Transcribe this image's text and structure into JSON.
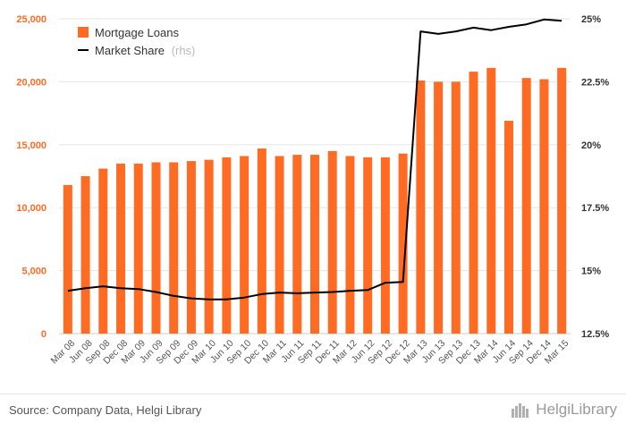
{
  "chart_data": {
    "type": "bar",
    "categories": [
      "Mar 08",
      "Jun 08",
      "Sep 08",
      "Dec 08",
      "Mar 09",
      "Jun 09",
      "Sep 09",
      "Dec 09",
      "Mar 10",
      "Jun 10",
      "Sep 10",
      "Dec 10",
      "Mar 11",
      "Jun 11",
      "Sep 11",
      "Dec 11",
      "Mar 12",
      "Jun 12",
      "Sep 12",
      "Dec 12",
      "Mar 13",
      "Jun 13",
      "Sep 13",
      "Dec 13",
      "Mar 14",
      "Jun 14",
      "Sep 14",
      "Dec 14",
      "Mar 15"
    ],
    "series": [
      {
        "name": "Mortgage Loans",
        "type": "bar",
        "axis": "left",
        "color": "#ff6b23",
        "values": [
          11800,
          12500,
          13100,
          13500,
          13500,
          13600,
          13600,
          13700,
          13800,
          14000,
          14100,
          14700,
          14100,
          14200,
          14200,
          14500,
          14100,
          14000,
          14000,
          14300,
          20100,
          20000,
          20000,
          20800,
          21100,
          16900,
          20300,
          20200,
          21100
        ]
      },
      {
        "name": "Market Share",
        "name_suffix": "(rhs)",
        "type": "line",
        "axis": "right",
        "color": "#000000",
        "values": [
          14.2,
          14.3,
          14.38,
          14.3,
          14.27,
          14.15,
          14.0,
          13.9,
          13.86,
          13.86,
          13.93,
          14.07,
          14.13,
          14.1,
          14.13,
          14.15,
          14.2,
          14.23,
          14.52,
          14.55,
          24.5,
          24.4,
          24.5,
          24.65,
          24.55,
          24.68,
          24.78,
          24.97,
          24.92
        ]
      }
    ],
    "y_left": {
      "ticks": [
        0,
        5000,
        10000,
        15000,
        20000,
        25000
      ],
      "tick_labels": [
        "0",
        "5,000",
        "10,000",
        "15,000",
        "20,000",
        "25,000"
      ],
      "range": [
        0,
        25000
      ]
    },
    "y_right": {
      "ticks": [
        12.5,
        15,
        17.5,
        20,
        22.5,
        25
      ],
      "tick_labels": [
        "12.5%",
        "15%",
        "17.5%",
        "20%",
        "22.5%",
        "25%"
      ],
      "range": [
        12.5,
        25
      ]
    },
    "legend": {
      "placement": "top-left"
    },
    "grid": true,
    "colors": {
      "tick_left": "#ff6b23",
      "tick_right": "#333333",
      "grid": "#e5e5e5",
      "suffix": "#bbbbbb"
    }
  },
  "footer": {
    "source": "Source: Company Data, Helgi Library",
    "logo_text": "HelgiLibrary",
    "logo_icon": "helgi-library-icon"
  }
}
